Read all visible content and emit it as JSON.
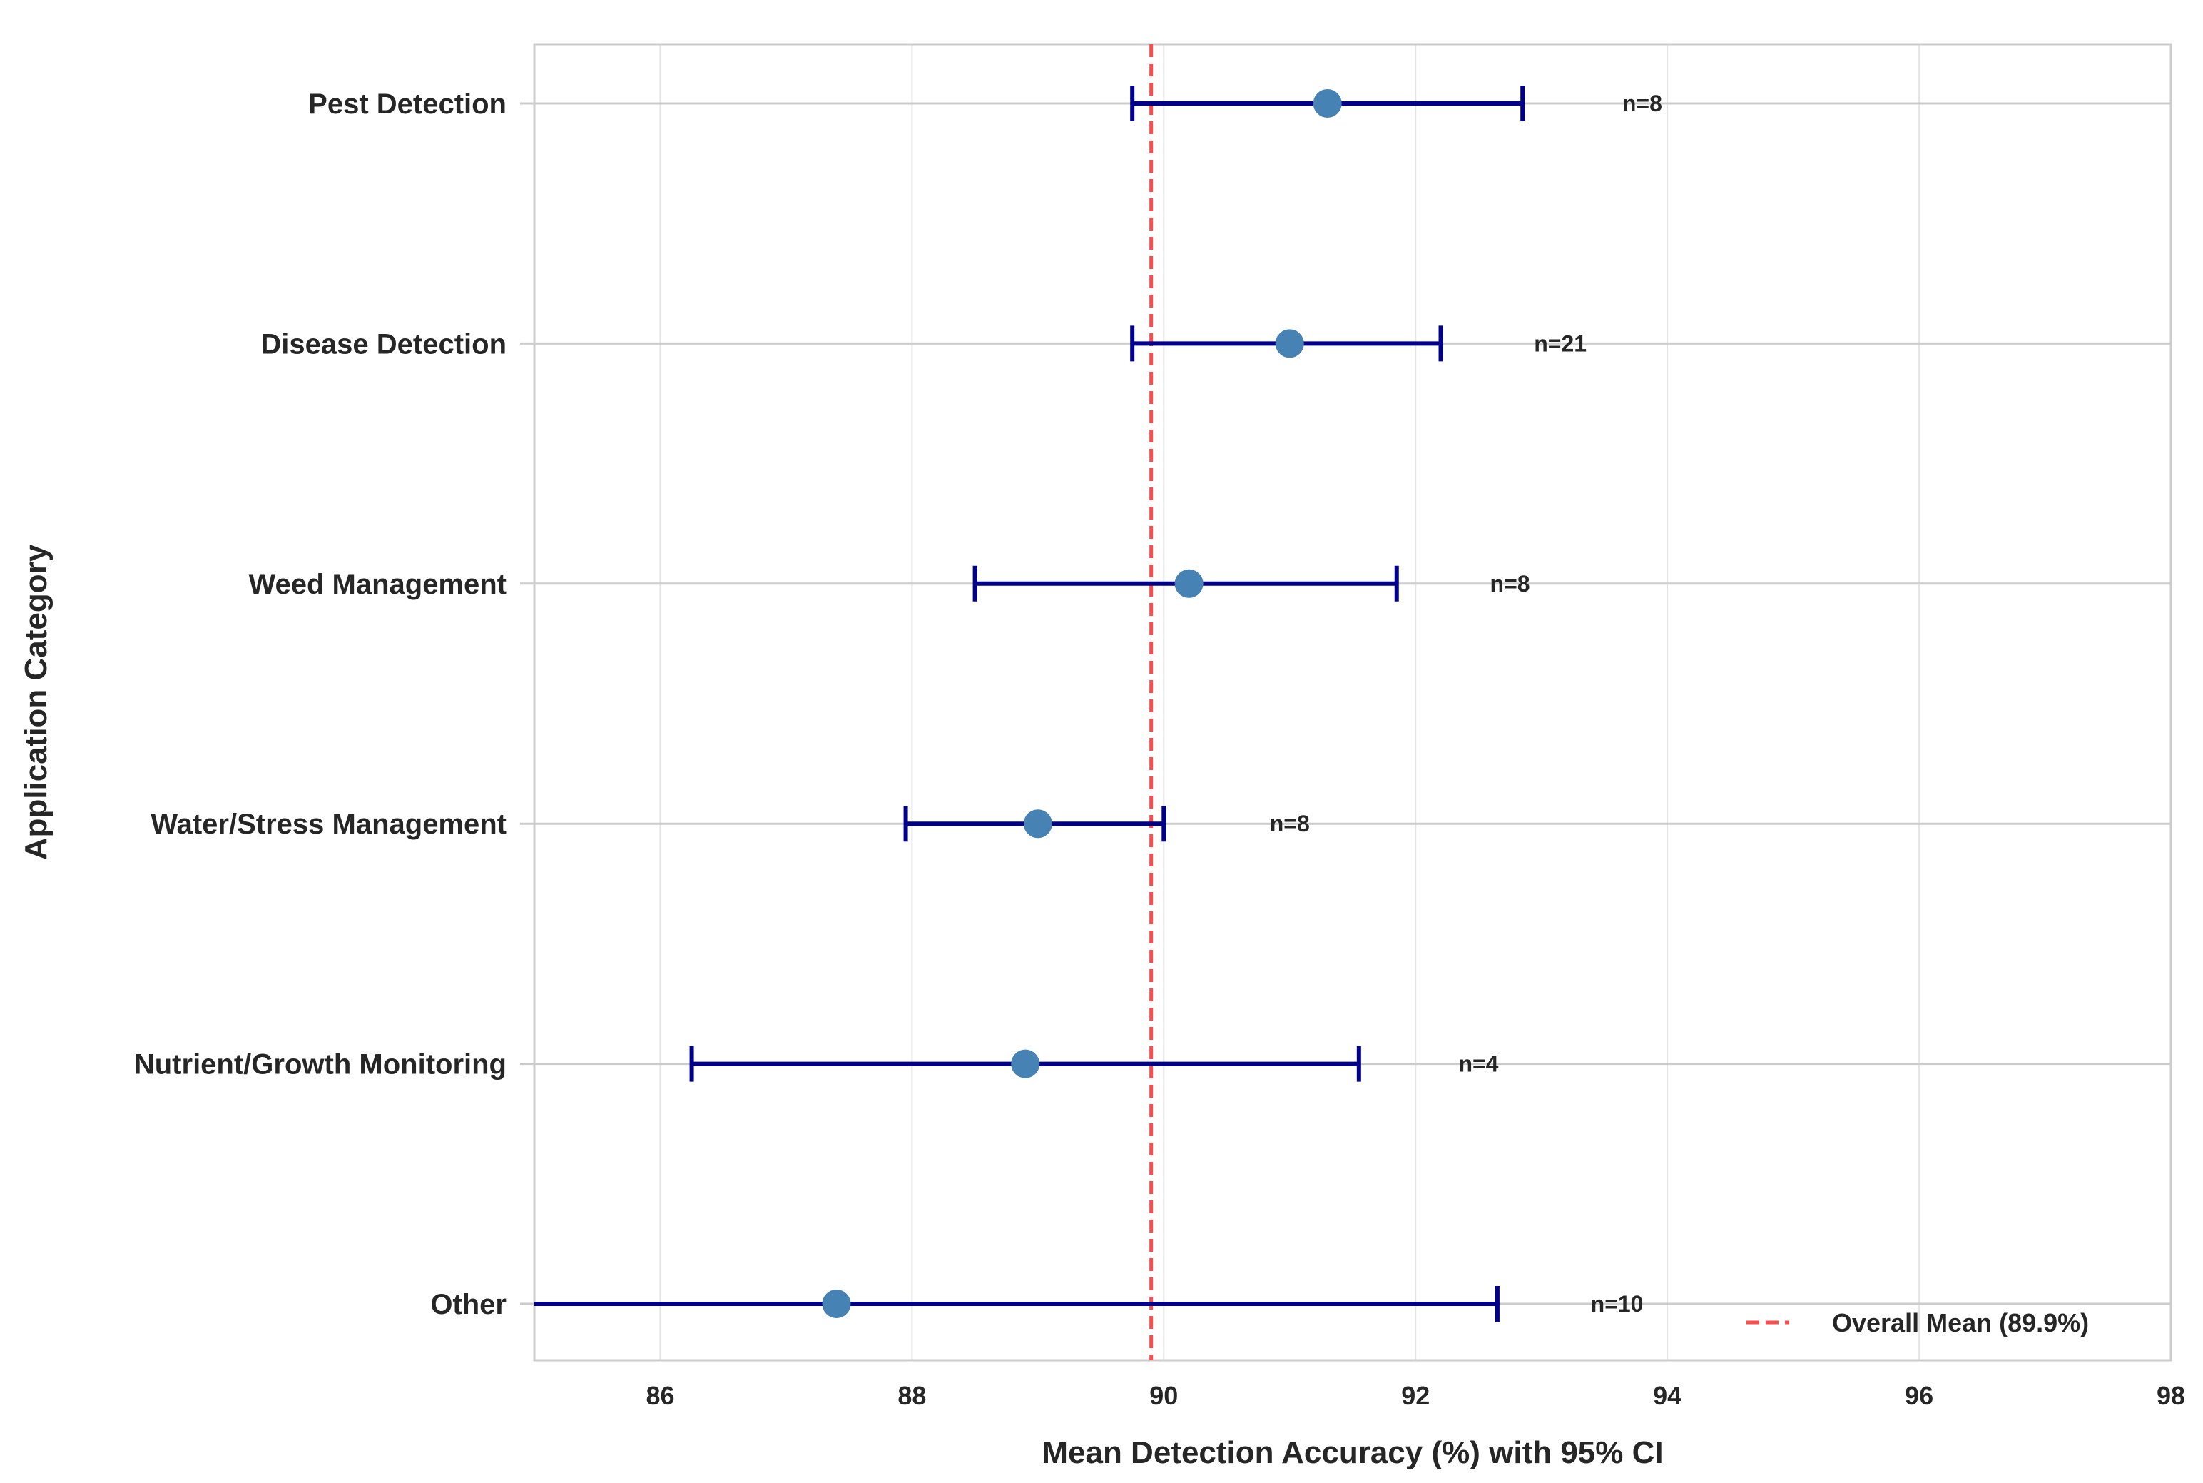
{
  "chart_data": {
    "type": "scatter",
    "subtype": "errorbar-horizontal",
    "title": "",
    "xlabel": "Mean Detection Accuracy (%) with 95% CI",
    "ylabel": "Application Category",
    "xlim": [
      85,
      98
    ],
    "xticks": [
      86,
      88,
      90,
      92,
      94,
      96,
      98
    ],
    "grid": true,
    "legend_position": "lower-right",
    "categories": [
      "Pest Detection",
      "Disease Detection",
      "Weed Management",
      "Water/Stress Management",
      "Nutrient/Growth Monitoring",
      "Other"
    ],
    "series": [
      {
        "means": [
          91.3,
          91.0,
          90.2,
          89.0,
          88.9,
          87.4
        ],
        "ci_low": [
          89.75,
          89.75,
          88.5,
          87.95,
          86.25,
          84.95
        ],
        "ci_high": [
          92.85,
          92.2,
          91.85,
          90.0,
          91.55,
          92.65
        ],
        "counts": [
          "n=8",
          "n=21",
          "n=8",
          "n=8",
          "n=4",
          "n=10"
        ],
        "n_label_x": [
          93.8,
          93.15,
          92.75,
          91.0,
          92.5,
          93.6
        ]
      }
    ],
    "reference_line": {
      "value": 89.9,
      "label": "Overall Mean (89.9%)"
    },
    "colors": {
      "marker": "#4682b4",
      "errorbar": "#00008b",
      "reference_line": "#ff4b4b",
      "grid": "#e5e5e5",
      "category_line": "#cccccc",
      "frame": "#cccccc"
    }
  }
}
